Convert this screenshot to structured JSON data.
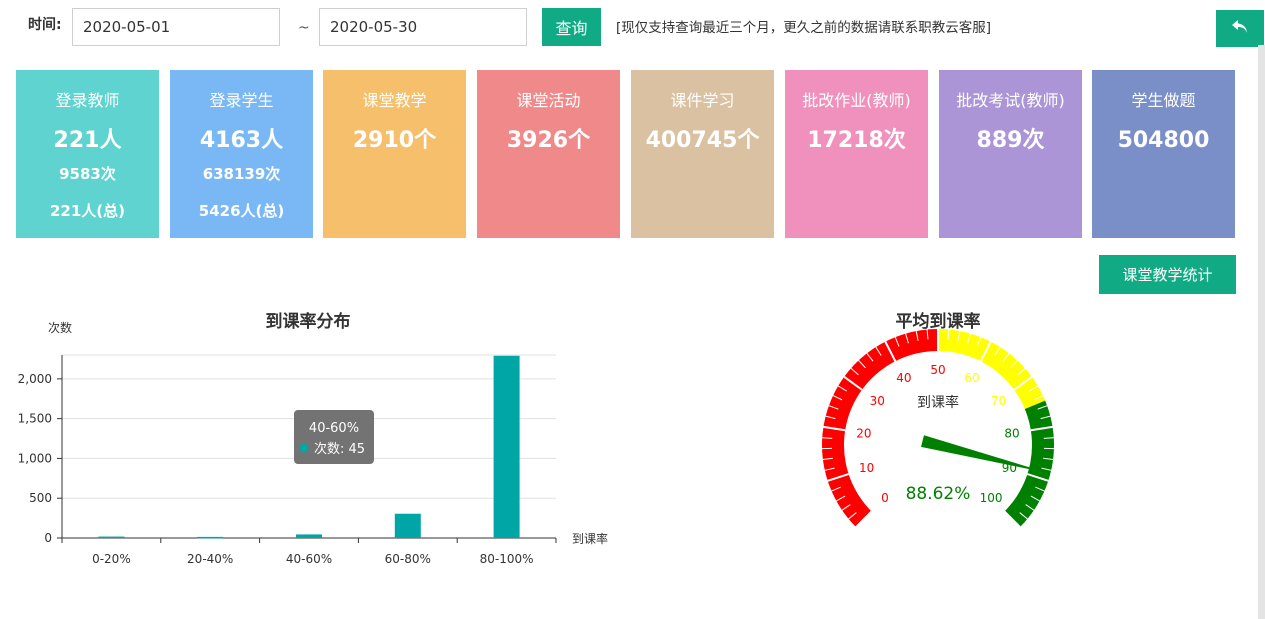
{
  "filter": {
    "time_label": "时间:",
    "start_date": "2020-05-01",
    "separator": "~",
    "end_date": "2020-05-30",
    "query_label": "查询",
    "notice": "[现仅支持查询最近三个月，更久之前的数据请联系职教云客服]"
  },
  "back_icon": "return-arrow-icon",
  "cards": [
    {
      "title": "登录教师",
      "main": "221人",
      "sub1": "9583次",
      "sub2": "221人(总)",
      "color": "#5fd3cf"
    },
    {
      "title": "登录学生",
      "main": "4163人",
      "sub1": "638139次",
      "sub2": "5426人(总)",
      "color": "#7ab8f5"
    },
    {
      "title": "课堂教学",
      "main": "2910个",
      "sub1": "",
      "sub2": "",
      "color": "#f5bf6c"
    },
    {
      "title": "课堂活动",
      "main": "3926个",
      "sub1": "",
      "sub2": "",
      "color": "#f08a8a"
    },
    {
      "title": "课件学习",
      "main": "400745个",
      "sub1": "",
      "sub2": "",
      "color": "#d9c1a1"
    },
    {
      "title": "批改作业(教师)",
      "main": "17218次",
      "sub1": "",
      "sub2": "",
      "color": "#ef91bc"
    },
    {
      "title": "批改考试(教师)",
      "main": "889次",
      "sub1": "",
      "sub2": "",
      "color": "#ac95d6"
    },
    {
      "title": "学生做题",
      "main": "504800",
      "sub1": "",
      "sub2": "",
      "color": "#7a8ec8"
    }
  ],
  "stat_button": "课堂教学统计",
  "chart_data": [
    {
      "type": "bar",
      "title": "到课率分布",
      "ylabel": "次数",
      "xlabel": "到课率",
      "categories": [
        "0-20%",
        "20-40%",
        "40-60%",
        "60-80%",
        "80-100%"
      ],
      "series": [
        {
          "name": "次数",
          "values": [
            18,
            14,
            45,
            305,
            2290
          ],
          "color": "#00a6a6"
        }
      ],
      "ylim": [
        0,
        2300
      ],
      "yticks": [
        "0",
        "500",
        "1,000",
        "1,500",
        "2,000"
      ],
      "ytick_values": [
        0,
        500,
        1000,
        1500,
        2000
      ],
      "tooltip": {
        "category": "40-60%",
        "series": "次数",
        "value": "45"
      }
    },
    {
      "type": "gauge",
      "title": "平均到课率",
      "label": "到课率",
      "value": 88.62,
      "value_text": "88.62%",
      "min": 0,
      "max": 100,
      "tick_labels": [
        "0",
        "10",
        "20",
        "30",
        "40",
        "50",
        "60",
        "70",
        "80",
        "90",
        "100"
      ],
      "bands": [
        {
          "from": 0,
          "to": 50,
          "color": "#ff0000"
        },
        {
          "from": 50,
          "to": 75,
          "color": "#ffff00"
        },
        {
          "from": 75,
          "to": 100,
          "color": "#008000"
        }
      ]
    }
  ]
}
